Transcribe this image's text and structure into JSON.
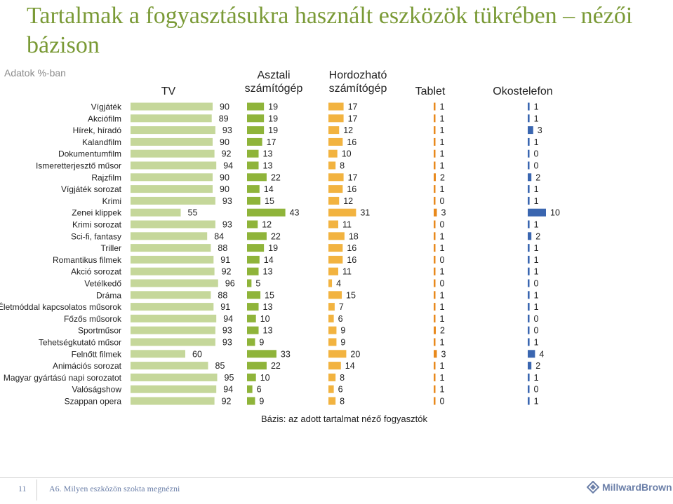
{
  "title": "Tartalmak a fogyasztásukra használt eszközök tükrében – nézői bázison",
  "subtitle": "Adatok %-ban",
  "basis": "Bázis: az adott tartalmat néző fogyasztók",
  "footer": {
    "page": "11",
    "question": "A6. Milyen eszközön szokta megnézni"
  },
  "logo": {
    "text": "MillwardBrown"
  },
  "colors": {
    "tv": "#c5d79a",
    "desktop": "#8fb43a",
    "portable": "#f2b340",
    "tablet": "#e8891c",
    "phone": "#3a66b0",
    "title": "#7a9a36"
  },
  "chart_data": {
    "type": "bar",
    "columns": [
      {
        "key": "tv",
        "label": "TV"
      },
      {
        "key": "desktop",
        "label": "Asztali számítógép"
      },
      {
        "key": "portable",
        "label": "Hordozható számítógép"
      },
      {
        "key": "tablet",
        "label": "Tablet"
      },
      {
        "key": "phone",
        "label": "Okostelefon"
      }
    ],
    "categories": [
      "Vígjáték",
      "Akciófilm",
      "Hírek, híradó",
      "Kalandfilm",
      "Dokumentumfilm",
      "Ismeretterjesztő műsor",
      "Rajzfilm",
      "Vígjáték sorozat",
      "Krimi",
      "Zenei klippek",
      "Krimi sorozat",
      "Sci-fi, fantasy",
      "Triller",
      "Romantikus filmek",
      "Akció sorozat",
      "Vetélkedő",
      "Dráma",
      "Életmóddal kapcsolatos műsorok",
      "Főzős műsorok",
      "Sportműsor",
      "Tehetségkutató műsor",
      "Felnőtt filmek",
      "Animációs sorozat",
      "Magyar gyártású napi sorozatot",
      "Valóságshow",
      "Szappan opera"
    ],
    "series": [
      {
        "key": "tv",
        "values": [
          90,
          89,
          93,
          90,
          92,
          94,
          90,
          90,
          93,
          55,
          93,
          84,
          88,
          91,
          92,
          96,
          88,
          91,
          94,
          93,
          93,
          60,
          85,
          95,
          94,
          92
        ]
      },
      {
        "key": "desktop",
        "values": [
          19,
          19,
          19,
          17,
          13,
          13,
          22,
          14,
          15,
          43,
          12,
          22,
          19,
          14,
          13,
          5,
          15,
          13,
          10,
          13,
          9,
          33,
          22,
          10,
          6,
          9
        ]
      },
      {
        "key": "portable",
        "values": [
          17,
          17,
          12,
          16,
          10,
          8,
          17,
          16,
          12,
          31,
          11,
          18,
          16,
          16,
          11,
          4,
          15,
          7,
          6,
          9,
          9,
          20,
          14,
          8,
          6,
          8
        ]
      },
      {
        "key": "tablet",
        "values": [
          1,
          1,
          1,
          1,
          1,
          1,
          2,
          1,
          0,
          3,
          0,
          1,
          1,
          0,
          1,
          0,
          1,
          1,
          1,
          2,
          1,
          3,
          1,
          1,
          1,
          0
        ]
      },
      {
        "key": "phone",
        "values": [
          1,
          1,
          3,
          1,
          0,
          0,
          2,
          1,
          1,
          10,
          1,
          2,
          1,
          1,
          1,
          0,
          1,
          1,
          0,
          0,
          1,
          4,
          2,
          1,
          0,
          1
        ]
      }
    ]
  }
}
